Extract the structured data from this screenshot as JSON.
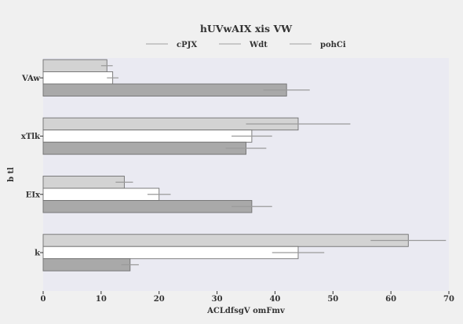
{
  "chart_data": {
    "type": "bar",
    "orientation": "horizontal",
    "title": "hUVwAIX xis VW",
    "xlabel": "ACLdfsgV omFmv",
    "ylabel": "b tl",
    "categories": [
      "VAw",
      "xTlk",
      "EIx",
      "k"
    ],
    "series": [
      {
        "name": "cPJX",
        "values": [
          11,
          44,
          14,
          63
        ],
        "errors": [
          1,
          9,
          1.5,
          6.5
        ],
        "color": "#d3d3d3"
      },
      {
        "name": "Wdt",
        "values": [
          12,
          36,
          20,
          44
        ],
        "errors": [
          1,
          3.5,
          2,
          4.5
        ],
        "color": "#ffffff"
      },
      {
        "name": "pohCi",
        "values": [
          42,
          35,
          36,
          15
        ],
        "errors": [
          4,
          3.5,
          3.5,
          1.5
        ],
        "color": "#a9a9a9"
      }
    ],
    "xlim": [
      0,
      70
    ],
    "xticks": [
      0,
      10,
      20,
      30,
      40,
      50,
      60,
      70
    ],
    "legend_position": "top",
    "grid": false,
    "plot_background": "#eaeaf2",
    "page_background": "#f0f0f0"
  }
}
